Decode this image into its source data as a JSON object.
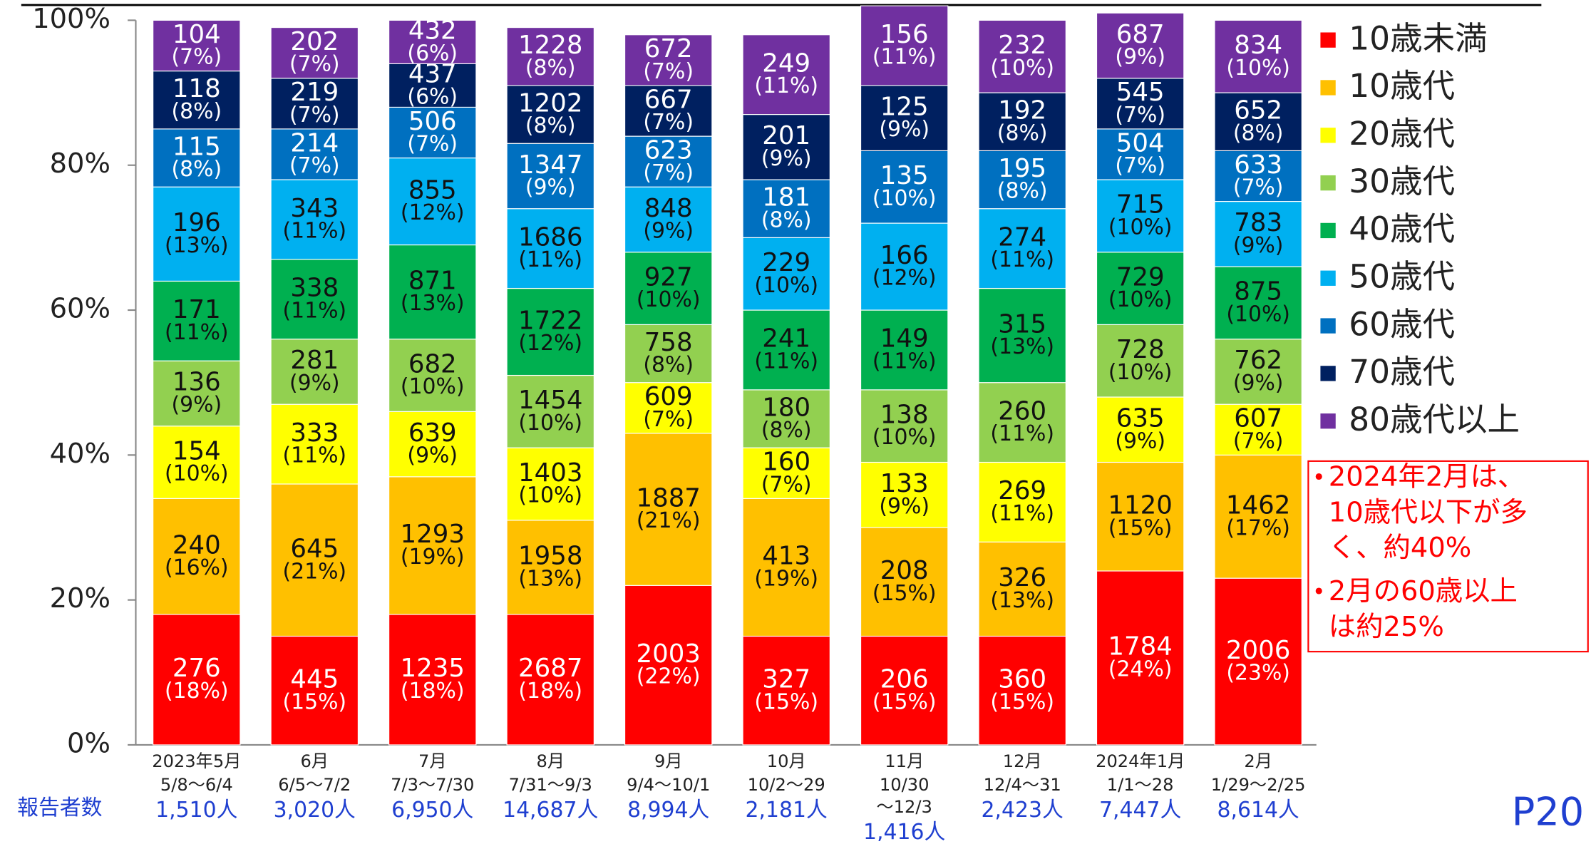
{
  "chart_data": {
    "type": "bar",
    "stacked": true,
    "categories": [
      "2023年5月",
      "6月",
      "7月",
      "8月",
      "9月",
      "10月",
      "11月",
      "12月",
      "2024年1月",
      "2月"
    ],
    "periods": [
      [
        "5/8～6/4"
      ],
      [
        "6/5～7/2"
      ],
      [
        "7/3～7/30"
      ],
      [
        "7/31～9/3"
      ],
      [
        "9/4～10/1"
      ],
      [
        "10/2～29"
      ],
      [
        "10/30",
        "～12/3"
      ],
      [
        "12/4～31"
      ],
      [
        "1/1～28"
      ],
      [
        "1/29～2/25"
      ]
    ],
    "reporters_label": "報告者数",
    "reporters": [
      "1,510人",
      "3,020人",
      "6,950人",
      "14,687人",
      "8,994人",
      "2,181人",
      "1,416人",
      "2,423人",
      "7,447人",
      "8,614人"
    ],
    "ylim": [
      0,
      100
    ],
    "yticks": [
      {
        "value": 0,
        "label": "0%"
      },
      {
        "value": 20,
        "label": "20%"
      },
      {
        "value": 40,
        "label": "40%"
      },
      {
        "value": 60,
        "label": "60%"
      },
      {
        "value": 80,
        "label": "80%"
      },
      {
        "value": 100,
        "label": "100%"
      }
    ],
    "series": [
      {
        "name": "10歳未満",
        "color": "#ff0000",
        "label_color": "#ffffff",
        "counts": [
          276,
          445,
          1235,
          2687,
          2003,
          327,
          206,
          360,
          1784,
          2006
        ],
        "values": [
          18,
          15,
          18,
          18,
          22,
          15,
          15,
          15,
          24,
          23
        ],
        "value_labels": [
          "(18%)",
          "(15%)",
          "(18%)",
          "(18%)",
          "(22%)",
          "(15%)",
          "(15%)",
          "(15%)",
          "(24%)",
          "(23%)"
        ]
      },
      {
        "name": "10歳代",
        "color": "#ffc000",
        "label_color": "#111111",
        "counts": [
          240,
          645,
          1293,
          1958,
          1887,
          413,
          208,
          326,
          1120,
          1462
        ],
        "values": [
          16,
          21,
          19,
          13,
          21,
          19,
          15,
          13,
          15,
          17
        ],
        "value_labels": [
          "(16%)",
          "(21%)",
          "(19%)",
          "(13%)",
          "(21%)",
          "(19%)",
          "(15%)",
          "(13%)",
          "(15%)",
          "(17%)"
        ]
      },
      {
        "name": "20歳代",
        "color": "#ffff00",
        "label_color": "#111111",
        "counts": [
          154,
          333,
          639,
          1403,
          609,
          160,
          133,
          269,
          635,
          607
        ],
        "values": [
          10,
          11,
          9,
          10,
          7,
          7,
          9,
          11,
          9,
          7
        ],
        "value_labels": [
          "(10%)",
          "(11%)",
          "(9%)",
          "(10%)",
          "(7%)",
          "(7%)",
          "(9%)",
          "(11%)",
          "(9%)",
          "(7%)"
        ]
      },
      {
        "name": "30歳代",
        "color": "#92d050",
        "label_color": "#111111",
        "counts": [
          136,
          281,
          682,
          1454,
          758,
          180,
          138,
          260,
          728,
          762
        ],
        "values": [
          9,
          9,
          10,
          10,
          8,
          8,
          10,
          11,
          10,
          9
        ],
        "value_labels": [
          "(9%)",
          "(9%)",
          "(10%)",
          "(10%)",
          "(8%)",
          "(8%)",
          "(10%)",
          "(11%)",
          "(10%)",
          "(9%)"
        ]
      },
      {
        "name": "40歳代",
        "color": "#00b050",
        "label_color": "#111111",
        "counts": [
          171,
          338,
          871,
          1722,
          927,
          241,
          149,
          315,
          729,
          875
        ],
        "values": [
          11,
          11,
          13,
          12,
          10,
          11,
          11,
          13,
          10,
          10
        ],
        "value_labels": [
          "(11%)",
          "(11%)",
          "(13%)",
          "(12%)",
          "(10%)",
          "(11%)",
          "(11%)",
          "(13%)",
          "(10%)",
          "(10%)"
        ]
      },
      {
        "name": "50歳代",
        "color": "#00b0f0",
        "label_color": "#111111",
        "counts": [
          196,
          343,
          855,
          1686,
          848,
          229,
          166,
          274,
          715,
          783
        ],
        "values": [
          13,
          11,
          12,
          11,
          9,
          10,
          12,
          11,
          10,
          9
        ],
        "value_labels": [
          "(13%)",
          "(11%)",
          "(12%)",
          "(11%)",
          "(9%)",
          "(10%)",
          "(12%)",
          "(11%)",
          "(10%)",
          "(9%)"
        ]
      },
      {
        "name": "60歳代",
        "color": "#0070c0",
        "label_color": "#ffffff",
        "counts": [
          115,
          214,
          506,
          1347,
          623,
          181,
          135,
          195,
          504,
          633
        ],
        "values": [
          8,
          7,
          7,
          9,
          7,
          8,
          10,
          8,
          7,
          7
        ],
        "value_labels": [
          "(8%)",
          "(7%)",
          "(7%)",
          "(9%)",
          "(7%)",
          "(8%)",
          "(10%)",
          "(8%)",
          "(7%)",
          "(7%)"
        ]
      },
      {
        "name": "70歳代",
        "color": "#002060",
        "label_color": "#ffffff",
        "counts": [
          118,
          219,
          437,
          1202,
          667,
          201,
          125,
          192,
          545,
          652
        ],
        "values": [
          8,
          7,
          6,
          8,
          7,
          9,
          9,
          8,
          7,
          8
        ],
        "value_labels": [
          "(8%)",
          "(7%)",
          "(6%)",
          "(8%)",
          "(7%)",
          "(9%)",
          "(9%)",
          "(8%)",
          "(7%)",
          "(8%)"
        ]
      },
      {
        "name": "80歳代以上",
        "color": "#7030a0",
        "label_color": "#ffffff",
        "counts": [
          104,
          202,
          432,
          1228,
          672,
          249,
          156,
          232,
          687,
          834
        ],
        "values": [
          7,
          7,
          6,
          8,
          7,
          11,
          11,
          10,
          9,
          10
        ],
        "value_labels": [
          "(7%)",
          "(7%)",
          "(6%)",
          "(8%)",
          "(7%)",
          "(11%)",
          "(11%)",
          "(10%)",
          "(9%)",
          "(10%)"
        ]
      }
    ],
    "annotations": [
      [
        "2024年2月は、",
        "10歳代以下が多",
        "く、約40%"
      ],
      [
        "2月の60歳以上",
        "は約25%"
      ]
    ],
    "page_number": "P20"
  }
}
